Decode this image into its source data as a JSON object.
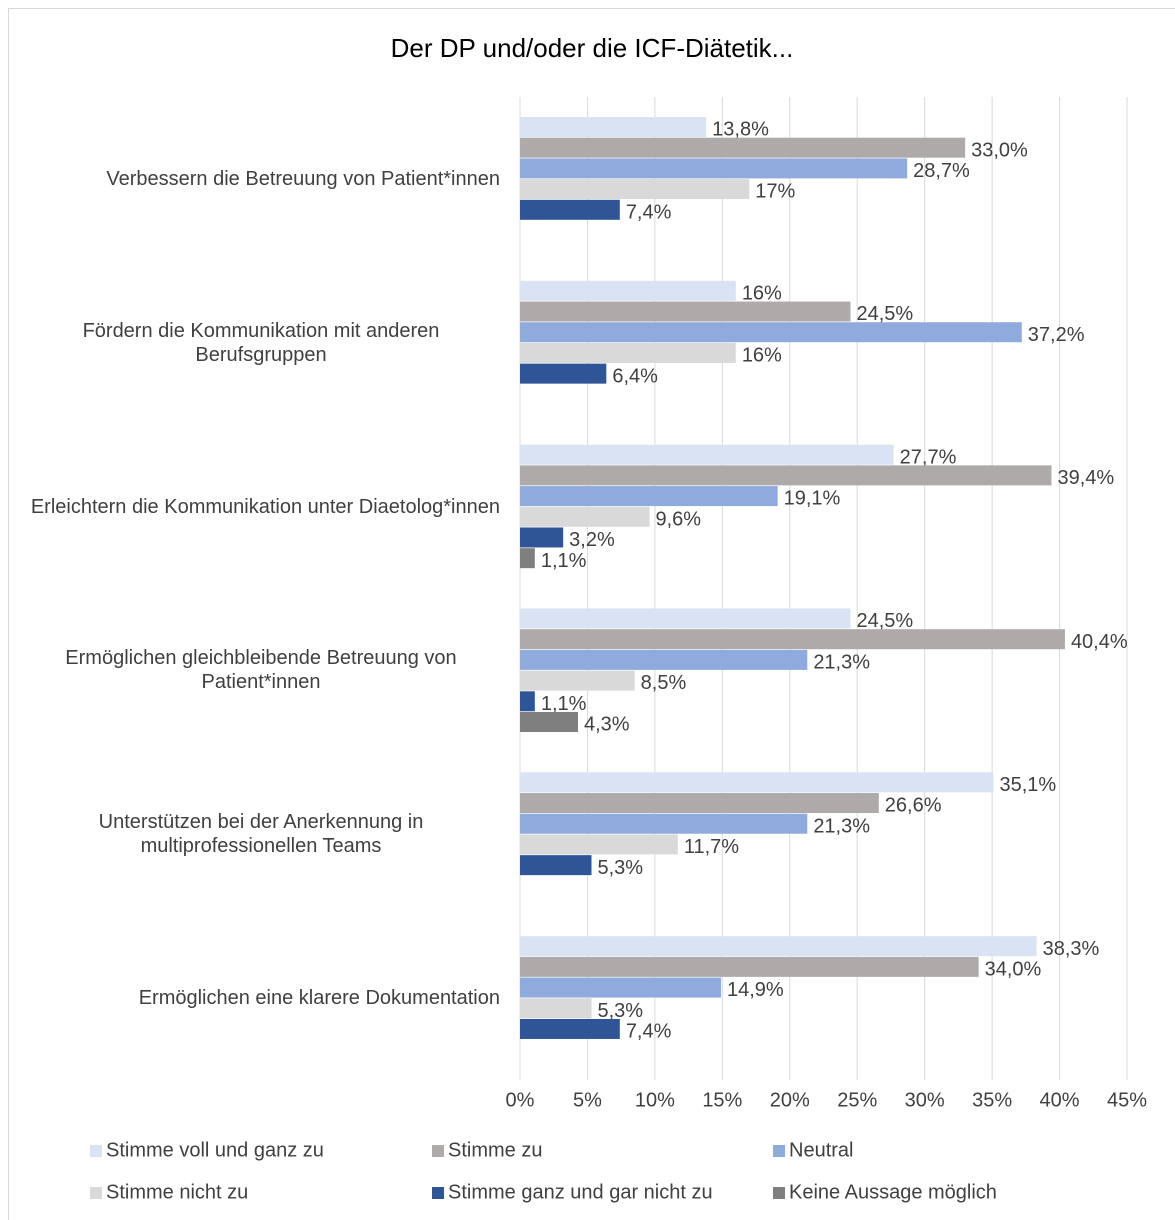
{
  "chart_data": {
    "type": "hbar",
    "title": "Der DP und/oder die ICF-Diätetik...",
    "categories": [
      "Verbessern die Betreuung von Patient*innen",
      "Fördern die Kommunikation mit anderen Berufsgruppen",
      "Erleichtern die Kommunikation unter Diaetolog*innen",
      "Ermöglichen gleichbleibende Betreuung von Patient*innen",
      "Unterstützen bei der Anerkennung in multiprofessionellen Teams",
      "Ermöglichen eine klarere Dokumentation"
    ],
    "series": [
      {
        "name": "Stimme voll und ganz zu",
        "color": "#dae3f3",
        "values": [
          13.8,
          16,
          27.7,
          24.5,
          35.1,
          38.3
        ],
        "value_labels": [
          "13,8%",
          "16%",
          "27,7%",
          "24,5%",
          "35,1%",
          "38,3%"
        ]
      },
      {
        "name": "Stimme zu",
        "color": "#aeaaaa",
        "values": [
          33.0,
          24.5,
          39.4,
          40.4,
          26.6,
          34.0
        ],
        "value_labels": [
          "33,0%",
          "24,5%",
          "39,4%",
          "40,4%",
          "26,6%",
          "34,0%"
        ]
      },
      {
        "name": "Neutral",
        "color": "#8faadc",
        "values": [
          28.7,
          37.2,
          19.1,
          21.3,
          21.3,
          14.9
        ],
        "value_labels": [
          "28,7%",
          "37,2%",
          "19,1%",
          "21,3%",
          "21,3%",
          "14,9%"
        ]
      },
      {
        "name": "Stimme nicht zu",
        "color": "#d9d9d9",
        "values": [
          17,
          16,
          9.6,
          8.5,
          11.7,
          5.3
        ],
        "value_labels": [
          "17%",
          "16%",
          "9,6%",
          "8,5%",
          "11,7%",
          "5,3%"
        ]
      },
      {
        "name": "Stimme ganz und gar nicht zu",
        "color": "#2f5597",
        "values": [
          7.4,
          6.4,
          3.2,
          1.1,
          5.3,
          7.4
        ],
        "value_labels": [
          "7,4%",
          "6,4%",
          "3,2%",
          "1,1%",
          "5,3%",
          "7,4%"
        ]
      },
      {
        "name": "Keine Aussage möglich",
        "color": "#7f7f7f",
        "values": [
          null,
          null,
          1.1,
          4.3,
          null,
          null
        ],
        "value_labels": [
          null,
          null,
          "1,1%",
          "4,3%",
          null,
          null
        ]
      }
    ],
    "xlim": [
      0,
      45
    ],
    "xticks": [
      {
        "value": 0,
        "label": "0%"
      },
      {
        "value": 5,
        "label": "5%"
      },
      {
        "value": 10,
        "label": "10%"
      },
      {
        "value": 15,
        "label": "15%"
      },
      {
        "value": 20,
        "label": "20%"
      },
      {
        "value": 25,
        "label": "25%"
      },
      {
        "value": 30,
        "label": "30%"
      },
      {
        "value": 35,
        "label": "35%"
      },
      {
        "value": 40,
        "label": "40%"
      },
      {
        "value": 45,
        "label": "45%"
      }
    ],
    "grid": true,
    "legend": "bottom"
  }
}
